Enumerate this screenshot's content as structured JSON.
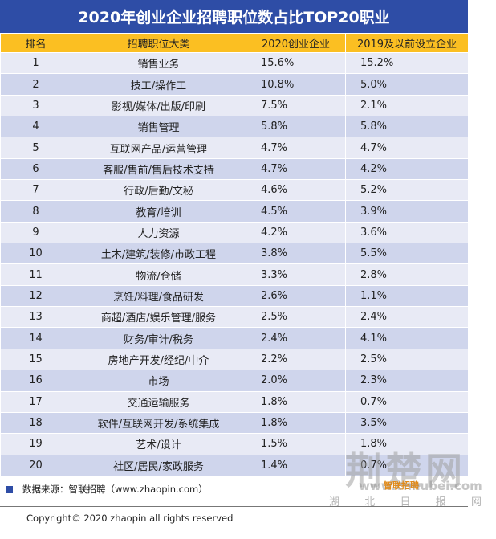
{
  "title": "2020年创业企业招聘职位数占比TOP20职业",
  "headers": [
    "排名",
    "招聘职位大类",
    "2020创业企业",
    "2019及以前设立企业"
  ],
  "rows": [
    [
      "1",
      "销售业务",
      "15.6%",
      "15.2%"
    ],
    [
      "2",
      "技工/操作工",
      "10.8%",
      "5.0%"
    ],
    [
      "3",
      "影视/媒体/出版/印刷",
      "7.5%",
      "2.1%"
    ],
    [
      "4",
      "销售管理",
      "5.8%",
      "5.8%"
    ],
    [
      "5",
      "互联网产品/运营管理",
      "4.7%",
      "4.7%"
    ],
    [
      "6",
      "客服/售前/售后技术支持",
      "4.7%",
      "4.2%"
    ],
    [
      "7",
      "行政/后勤/文秘",
      "4.6%",
      "5.2%"
    ],
    [
      "8",
      "教育/培训",
      "4.5%",
      "3.9%"
    ],
    [
      "9",
      "人力资源",
      "4.2%",
      "3.6%"
    ],
    [
      "10",
      "土木/建筑/装修/市政工程",
      "3.8%",
      "5.5%"
    ],
    [
      "11",
      "物流/仓储",
      "3.3%",
      "2.8%"
    ],
    [
      "12",
      "烹饪/料理/食品研发",
      "2.6%",
      "1.1%"
    ],
    [
      "13",
      "商超/酒店/娱乐管理/服务",
      "2.5%",
      "2.4%"
    ],
    [
      "14",
      "财务/审计/税务",
      "2.4%",
      "4.1%"
    ],
    [
      "15",
      "房地产开发/经纪/中介",
      "2.2%",
      "2.5%"
    ],
    [
      "16",
      "市场",
      "2.0%",
      "2.3%"
    ],
    [
      "17",
      "交通运输服务",
      "1.8%",
      "0.7%"
    ],
    [
      "18",
      "软件/互联网开发/系统集成",
      "1.8%",
      "3.5%"
    ],
    [
      "19",
      "艺术/设计",
      "1.5%",
      "1.8%"
    ],
    [
      "20",
      "社区/居民/家政服务",
      "1.4%",
      "0.7%"
    ]
  ],
  "source": "数据来源：智联招聘（www.zhaopin.com）",
  "copyright": "Copyright© 2020 zhaopin all rights reserved",
  "watermark": {
    "logo": "荆楚网",
    "url": "www.cnhubei.com",
    "brand": "智联招聘",
    "sub": [
      "湖",
      "北",
      "日",
      "报",
      "网"
    ]
  },
  "colors": {
    "title_bg": "#2e4da6",
    "header_bg": "#fbbf22",
    "row_light": "#e8eaf5",
    "row_dark": "#cfd5ec"
  }
}
